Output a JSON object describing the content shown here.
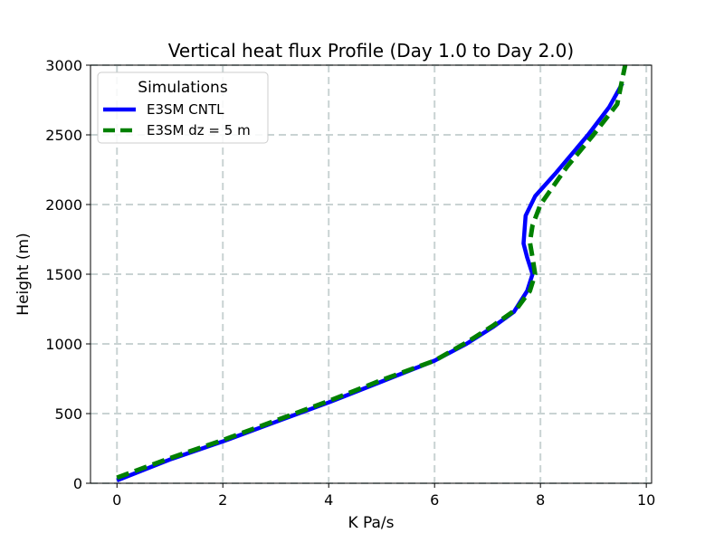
{
  "chart_data": {
    "type": "line",
    "title": "Vertical heat flux Profile (Day 1.0 to Day 2.0)",
    "xlabel": "K Pa/s",
    "ylabel": "Height (m)",
    "xlim": [
      -0.5,
      10.1
    ],
    "ylim": [
      0,
      3000
    ],
    "xticks": [
      0,
      2,
      4,
      6,
      8,
      10
    ],
    "yticks": [
      0,
      500,
      1000,
      1500,
      2000,
      2500,
      3000
    ],
    "grid": true,
    "legend": {
      "title": "Simulations",
      "placement": "top-left"
    },
    "series": [
      {
        "name": "E3SM CNTL",
        "color": "#0000ff",
        "style": "solid",
        "x": [
          0.0,
          1.0,
          2.0,
          3.0,
          4.0,
          5.0,
          6.0,
          6.6,
          7.1,
          7.5,
          7.75,
          7.85,
          7.75,
          7.68,
          7.72,
          7.9,
          8.3,
          8.9,
          9.3,
          9.55
        ],
        "y": [
          20,
          170,
          300,
          440,
          580,
          730,
          880,
          1000,
          1120,
          1230,
          1380,
          1500,
          1620,
          1720,
          1920,
          2060,
          2230,
          2500,
          2700,
          2870
        ]
      },
      {
        "name": "E3SM dz = 5 m",
        "color": "#008000",
        "style": "dashed",
        "x": [
          0.0,
          1.0,
          2.0,
          3.0,
          4.0,
          5.0,
          6.0,
          6.6,
          7.1,
          7.55,
          7.8,
          7.9,
          7.85,
          7.8,
          7.85,
          8.0,
          8.5,
          9.0,
          9.45,
          9.6
        ],
        "y": [
          40,
          180,
          310,
          450,
          590,
          740,
          880,
          1010,
          1130,
          1250,
          1380,
          1500,
          1620,
          1730,
          1850,
          2000,
          2270,
          2500,
          2720,
          3000
        ]
      }
    ]
  }
}
